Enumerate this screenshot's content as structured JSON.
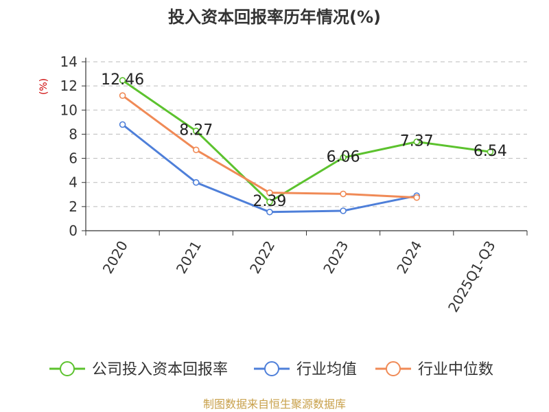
{
  "chart_data": {
    "type": "line",
    "title": "投入资本回报率历年情况(%)",
    "ylabel": "(%)",
    "categories": [
      "2020",
      "2021",
      "2022",
      "2023",
      "2024",
      "2025Q1-Q3"
    ],
    "yticks": [
      0,
      2,
      4,
      6,
      8,
      10,
      12,
      14
    ],
    "ylim": [
      0,
      14
    ],
    "grid": true,
    "legend_position": "bottom",
    "series": [
      {
        "name": "公司投入资本回报率",
        "color": "#5cc22e",
        "values": [
          12.46,
          8.27,
          2.39,
          6.06,
          7.37,
          6.54
        ],
        "labels": [
          "12.46",
          "8.27",
          "2.39",
          "6.06",
          "7.37",
          "6.54"
        ]
      },
      {
        "name": "行业均值",
        "color": "#4e7fd9",
        "values": [
          8.8,
          4.0,
          1.55,
          1.65,
          2.9,
          null
        ]
      },
      {
        "name": "行业中位数",
        "color": "#f08a56",
        "values": [
          11.2,
          6.7,
          3.15,
          3.05,
          2.75,
          null
        ]
      }
    ]
  },
  "source": "制图数据来自恒生聚源数据库"
}
